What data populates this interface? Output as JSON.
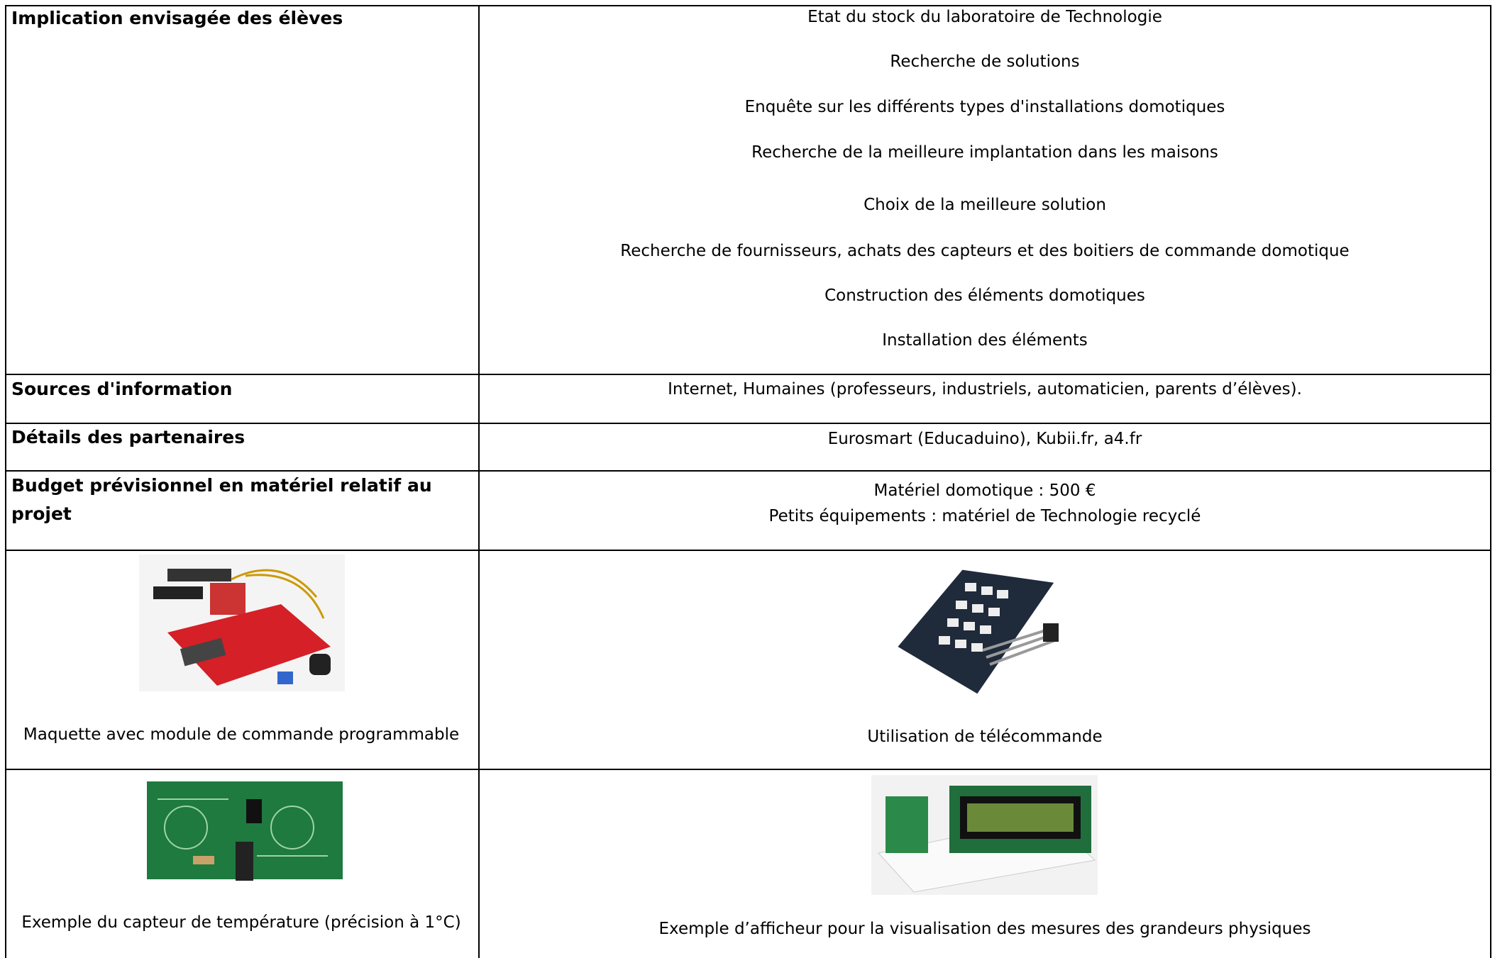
{
  "table": {
    "rows": [
      {
        "label": "Implication envisagée des élèves",
        "lines": [
          "Etat du stock du laboratoire de Technologie",
          "Recherche de solutions",
          "Enquête sur les différents types d'installations domotiques",
          "Recherche de la meilleure implantation dans les maisons",
          "Choix de la meilleure solution",
          "Recherche de fournisseurs, achats des capteurs et des boitiers de commande domotique",
          "Construction des éléments domotiques",
          "Installation des éléments"
        ]
      },
      {
        "label": "Sources d'information",
        "lines": [
          "Internet, Humaines (professeurs, industriels, automaticien, parents d’élèves)."
        ]
      },
      {
        "label": "Détails des partenaires",
        "lines": [
          "Eurosmart (Educaduino), Kubii.fr, a4.fr"
        ]
      },
      {
        "label": "Budget prévisionnel en matériel relatif au projet",
        "lines": [
          "Matériel domotique : 500 €",
          "Petits équipements : matériel de Technologie recyclé"
        ]
      }
    ],
    "figures": [
      {
        "caption": "Maquette avec module de commande programmable"
      },
      {
        "caption": "Utilisation de télécommande"
      },
      {
        "caption": "Exemple du capteur de température (précision à 1°C)"
      },
      {
        "caption": "Exemple d’afficheur pour la visualisation des mesures des grandeurs physiques"
      }
    ]
  }
}
